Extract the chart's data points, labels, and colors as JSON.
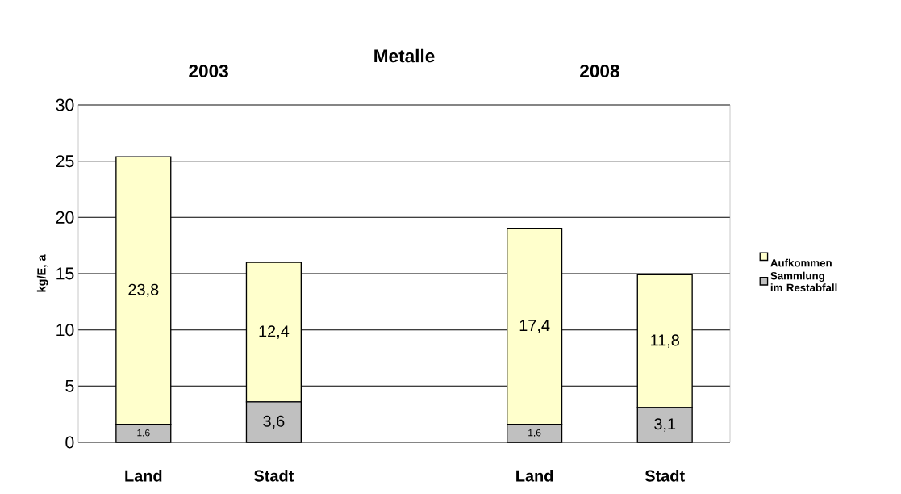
{
  "chart_data": {
    "type": "bar",
    "stacked": true,
    "title": "Metalle",
    "ylabel": "kg/E, a",
    "annotations": [
      "2003",
      "2008"
    ],
    "categories": [
      "Land",
      "Stadt",
      null,
      "Land",
      "Stadt"
    ],
    "series": [
      {
        "name": "im Restabfall",
        "color": "#c0c0c0",
        "values": [
          1.6,
          3.6,
          null,
          1.6,
          3.1
        ],
        "value_labels": [
          "1,6",
          "3,6",
          null,
          "1,6",
          "3,1"
        ]
      },
      {
        "name": "Aufkommen Sammlung",
        "color": "#ffffcc",
        "values": [
          23.8,
          12.4,
          null,
          17.4,
          11.8
        ],
        "value_labels": [
          "23,8",
          "12,4",
          null,
          "17,4",
          "11,8"
        ]
      }
    ],
    "ylim": [
      0,
      30
    ],
    "yticks": [
      0,
      5,
      10,
      15,
      20,
      25,
      30
    ],
    "grid": "y",
    "legend": "right"
  }
}
